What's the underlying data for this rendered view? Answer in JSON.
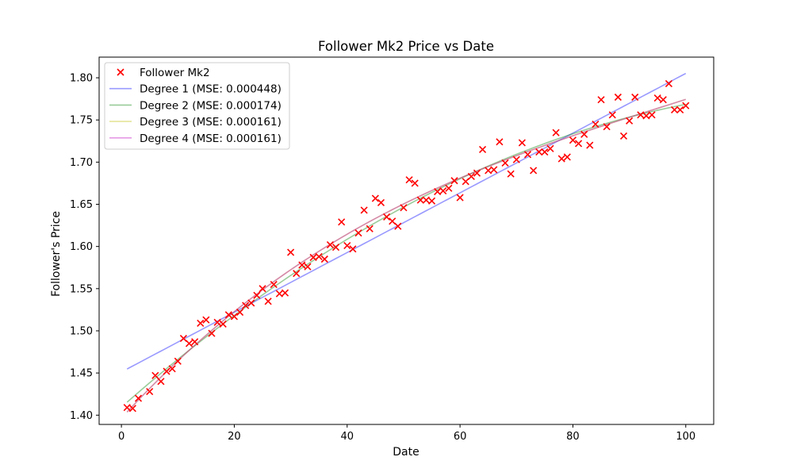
{
  "chart_data": {
    "type": "scatter",
    "title": "Follower Mk2 Price vs Date",
    "xlabel": "Date",
    "ylabel": "Follower's Price",
    "xlim": [
      -3.95,
      104.95
    ],
    "ylim": [
      1.389,
      1.8245
    ],
    "xticks": [
      0,
      20,
      40,
      60,
      80,
      100
    ],
    "yticks": [
      1.4,
      1.45,
      1.5,
      1.55,
      1.6,
      1.65,
      1.7,
      1.75,
      1.8
    ],
    "grid": false,
    "legend_position": "top-left",
    "scatter": {
      "name": "Follower Mk2",
      "color": "#ff0000",
      "marker": "x",
      "x": [
        1,
        2,
        3,
        5,
        6,
        7,
        8,
        9,
        10,
        11,
        12,
        13,
        14,
        15,
        16,
        17,
        18,
        19,
        20,
        21,
        22,
        23,
        24,
        25,
        26,
        27,
        28,
        29,
        30,
        31,
        32,
        33,
        34,
        35,
        36,
        37,
        38,
        39,
        40,
        41,
        42,
        43,
        44,
        45,
        46,
        47,
        48,
        49,
        50,
        51,
        52,
        53,
        54,
        55,
        56,
        57,
        58,
        59,
        60,
        61,
        62,
        63,
        64,
        65,
        66,
        67,
        68,
        69,
        70,
        71,
        72,
        73,
        74,
        75,
        76,
        77,
        78,
        79,
        80,
        81,
        82,
        83,
        84,
        85,
        86,
        87,
        88,
        89,
        90,
        91,
        92,
        93,
        94,
        95,
        96,
        97,
        98,
        99,
        100
      ],
      "y": [
        1.409,
        1.408,
        1.42,
        1.428,
        1.447,
        1.44,
        1.452,
        1.455,
        1.464,
        1.491,
        1.485,
        1.487,
        1.509,
        1.513,
        1.497,
        1.51,
        1.508,
        1.519,
        1.517,
        1.522,
        1.53,
        1.533,
        1.542,
        1.55,
        1.535,
        1.555,
        1.544,
        1.545,
        1.593,
        1.568,
        1.578,
        1.576,
        1.587,
        1.588,
        1.585,
        1.602,
        1.599,
        1.629,
        1.601,
        1.597,
        1.616,
        1.643,
        1.621,
        1.657,
        1.652,
        1.635,
        1.63,
        1.624,
        1.646,
        1.679,
        1.675,
        1.655,
        1.655,
        1.654,
        1.665,
        1.666,
        1.669,
        1.678,
        1.658,
        1.677,
        1.683,
        1.687,
        1.715,
        1.69,
        1.691,
        1.724,
        1.699,
        1.686,
        1.703,
        1.723,
        1.709,
        1.69,
        1.712,
        1.712,
        1.716,
        1.735,
        1.704,
        1.706,
        1.726,
        1.722,
        1.733,
        1.72,
        1.745,
        1.774,
        1.742,
        1.756,
        1.777,
        1.731,
        1.749,
        1.777,
        1.756,
        1.755,
        1.756,
        1.776,
        1.774,
        1.793,
        1.762,
        1.762,
        1.767
      ]
    },
    "series": [
      {
        "name": "Degree 1 (MSE: 0.000448)",
        "color": "#0000ff",
        "x_range": [
          1,
          100
        ],
        "coefficients": [
          1.4512,
          0.00354
        ]
      },
      {
        "name": "Degree 2 (MSE: 0.000174)",
        "color": "#008000",
        "x_range": [
          1,
          100
        ],
        "coefficients": [
          1.40946,
          0.0059,
          -2.31e-05
        ]
      },
      {
        "name": "Degree 3 (MSE: 0.000161)",
        "color": "#bfbf00",
        "x_range": [
          1,
          100
        ],
        "coefficients": [
          1.3964,
          0.00733,
          -5.45e-05,
          1.9e-07
        ]
      },
      {
        "name": "Degree 4 (MSE: 0.000161)",
        "color": "#bf00bf",
        "x_range": [
          1,
          100
        ],
        "coefficients": [
          1.3964,
          0.00733,
          -5.45e-05,
          1.9e-07,
          0
        ]
      }
    ]
  }
}
